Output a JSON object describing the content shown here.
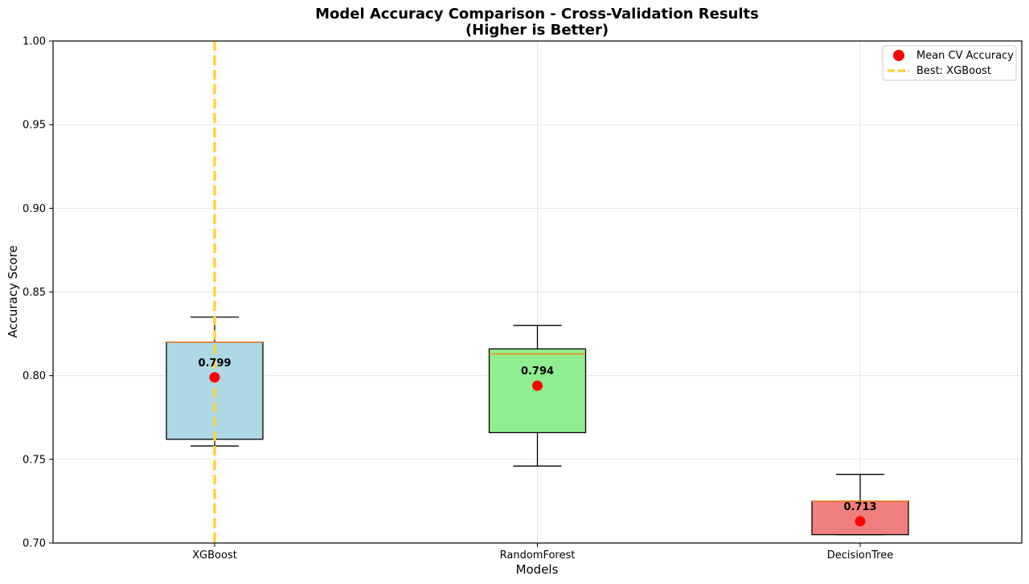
{
  "chart_data": {
    "type": "box",
    "title": "Model Accuracy Comparison - Cross-Validation Results",
    "subtitle": "(Higher is Better)",
    "xlabel": "Models",
    "ylabel": "Accuracy Score",
    "ylim": [
      0.7,
      1.0
    ],
    "yticks": [
      "0.70",
      "0.75",
      "0.80",
      "0.85",
      "0.90",
      "0.95",
      "1.00"
    ],
    "grid": true,
    "legend_position": "top-right",
    "categories": [
      "XGBoost",
      "RandomForest",
      "DecisionTree"
    ],
    "boxes": [
      {
        "name": "XGBoost",
        "whisker_low": 0.758,
        "q1": 0.762,
        "median": 0.82,
        "q3": 0.82,
        "whisker_high": 0.835,
        "mean": 0.799,
        "mean_label": "0.799",
        "color": "#add8e6"
      },
      {
        "name": "RandomForest",
        "whisker_low": 0.746,
        "q1": 0.766,
        "median": 0.813,
        "q3": 0.816,
        "whisker_high": 0.83,
        "mean": 0.794,
        "mean_label": "0.794",
        "color": "#90ee90"
      },
      {
        "name": "DecisionTree",
        "whisker_low": 0.705,
        "q1": 0.705,
        "median": 0.725,
        "q3": 0.725,
        "whisker_high": 0.741,
        "mean": 0.713,
        "mean_label": "0.713",
        "color": "#f08080"
      }
    ],
    "mean_marker_color": "#ff0000",
    "median_line_color": "#ff7f0e",
    "best_line": {
      "category": "XGBoost",
      "color": "#ffd23f"
    },
    "legend": [
      {
        "label": "Mean CV Accuracy",
        "marker": "red-dot"
      },
      {
        "label": "Best: XGBoost",
        "marker": "gold-dashed-line"
      }
    ]
  }
}
